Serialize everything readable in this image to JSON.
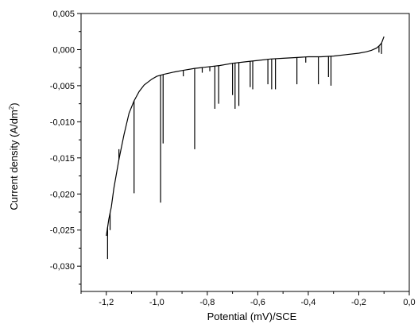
{
  "chart_data": {
    "type": "line",
    "xlabel": "Potential (mV)/SCE",
    "ylabel_main": "Current density (A/dm",
    "ylabel_sup": "2",
    "ylabel_close": ")",
    "xlim": [
      -1.3,
      0.0
    ],
    "ylim": [
      -0.0335,
      0.005
    ],
    "x_ticks": [
      -1.2,
      -1.0,
      -0.8,
      -0.6,
      -0.4,
      -0.2,
      0.0
    ],
    "x_tick_labels": [
      "-1,2",
      "-1,0",
      "-0,8",
      "-0,6",
      "-0,4",
      "-0,2",
      "0,0"
    ],
    "y_ticks": [
      0.005,
      0.0,
      -0.005,
      -0.01,
      -0.015,
      -0.02,
      -0.025,
      -0.03
    ],
    "y_tick_labels": [
      "0,005",
      "0,000",
      "-0,005",
      "-0,010",
      "-0,015",
      "-0,020",
      "-0,025",
      "-0,030"
    ],
    "grid": false,
    "line_color": "#000000",
    "series": [
      {
        "values": [
          [
            -1.2,
            -0.0258
          ],
          [
            -1.19,
            -0.0235
          ],
          [
            -1.18,
            -0.0218
          ],
          [
            -1.17,
            -0.0192
          ],
          [
            -1.15,
            -0.0152
          ],
          [
            -1.13,
            -0.0118
          ],
          [
            -1.11,
            -0.0088
          ],
          [
            -1.09,
            -0.0071
          ],
          [
            -1.07,
            -0.0058
          ],
          [
            -1.05,
            -0.0049
          ],
          [
            -1.02,
            -0.0041
          ],
          [
            -1.0,
            -0.0037
          ],
          [
            -0.97,
            -0.0034
          ],
          [
            -0.93,
            -0.0031
          ],
          [
            -0.9,
            -0.0029
          ],
          [
            -0.85,
            -0.0026
          ],
          [
            -0.8,
            -0.0024
          ],
          [
            -0.75,
            -0.0022
          ],
          [
            -0.7,
            -0.0019
          ],
          [
            -0.65,
            -0.0017
          ],
          [
            -0.6,
            -0.0015
          ],
          [
            -0.55,
            -0.0013
          ],
          [
            -0.5,
            -0.0012
          ],
          [
            -0.45,
            -0.0011
          ],
          [
            -0.4,
            -0.001
          ],
          [
            -0.35,
            -0.001
          ],
          [
            -0.3,
            -0.0009
          ],
          [
            -0.25,
            -0.0007
          ],
          [
            -0.2,
            -0.0005
          ],
          [
            -0.17,
            -0.0003
          ],
          [
            -0.15,
            -0.0001
          ],
          [
            -0.13,
            0.0002
          ],
          [
            -0.12,
            0.0005
          ],
          [
            -0.11,
            0.0009
          ],
          [
            -0.1,
            0.0018
          ]
        ]
      }
    ],
    "spikes": [
      [
        -1.195,
        -0.029
      ],
      [
        -1.185,
        -0.025
      ],
      [
        -1.15,
        -0.0138
      ],
      [
        -1.09,
        -0.0199
      ],
      [
        -0.985,
        -0.0212
      ],
      [
        -0.975,
        -0.013
      ],
      [
        -0.85,
        -0.0138
      ],
      [
        -0.895,
        -0.0037
      ],
      [
        -0.82,
        -0.0032
      ],
      [
        -0.79,
        -0.003
      ],
      [
        -0.77,
        -0.0082
      ],
      [
        -0.755,
        -0.0075
      ],
      [
        -0.7,
        -0.0063
      ],
      [
        -0.69,
        -0.0082
      ],
      [
        -0.675,
        -0.0078
      ],
      [
        -0.63,
        -0.0052
      ],
      [
        -0.62,
        -0.0055
      ],
      [
        -0.56,
        -0.0048
      ],
      [
        -0.545,
        -0.0055
      ],
      [
        -0.53,
        -0.0055
      ],
      [
        -0.445,
        -0.0048
      ],
      [
        -0.41,
        -0.0018
      ],
      [
        -0.36,
        -0.0048
      ],
      [
        -0.32,
        -0.0038
      ],
      [
        -0.31,
        -0.005
      ],
      [
        -0.12,
        -0.0004
      ],
      [
        -0.11,
        -0.0006
      ]
    ]
  }
}
